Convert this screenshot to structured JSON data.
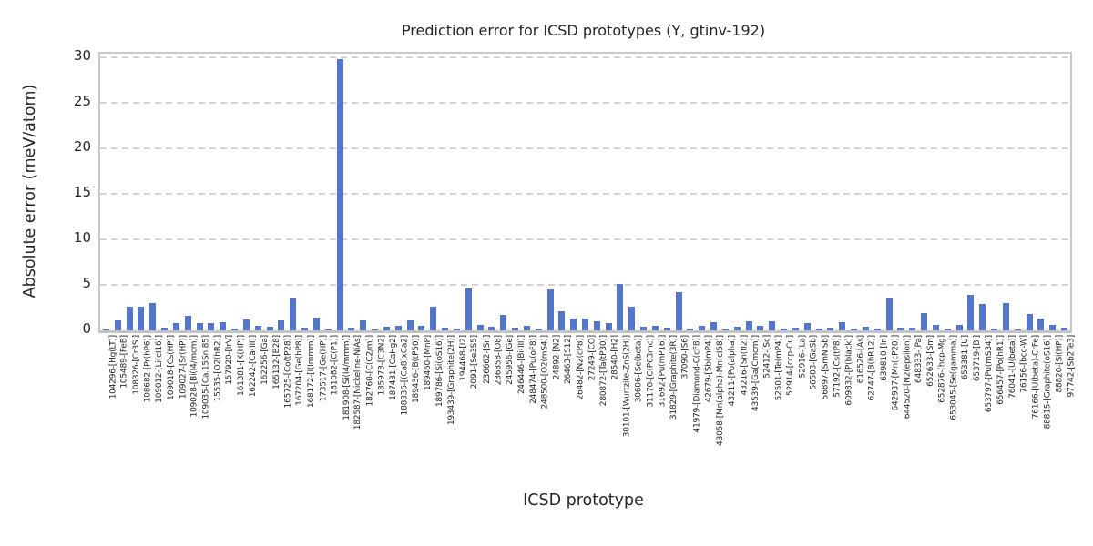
{
  "chart_data": {
    "type": "bar",
    "title": "Prediction error for ICSD prototypes (Y, gtinv-192)",
    "xlabel": "ICSD prototype",
    "ylabel": "Absolute error (meV/atom)",
    "ylim": [
      0,
      30.4
    ],
    "yticks": [
      0,
      5,
      10,
      15,
      20,
      25,
      30
    ],
    "grid": "horizontal dashed at yticks (except 0)",
    "legend": "none",
    "bar_color": "#5376cb",
    "categories": [
      "104296-[Hg(LT)]",
      "105489-[FeB]",
      "108326-[Cr3Si]",
      "108682-[Pr(hP6)]",
      "109012-[Li(cI16)]",
      "109018-[Cs(HP)]",
      "109027-[Sr(HP)]",
      "109028-[Bi(I4/mcm)]",
      "109035-[Ca.15Sn.85]",
      "15535-[O2(hR2)]",
      "157920-[IrV]",
      "161381-[K(HP)]",
      "162242-[Ca(III)]",
      "162256-[Ga]",
      "165132-[B28]",
      "165725-[Co(tP28)]",
      "167204-[Ge(hP8)]",
      "168172-[I(Immm)]",
      "173517-[Ge(HP)]",
      "181082-[C(P1)]",
      "181908-[Si(I4/mmm)]",
      "182587-[Nickeline-NiAs]",
      "182760-[C(C2/m)]",
      "185973-[C3N2]",
      "187431-[CaHg2]",
      "188336-[(Ca8)xCa2]",
      "189436-[B(tP50)]",
      "189460-[MnP]",
      "189786-[Si(oS16)]",
      "193439-[Graphite(2H)]",
      "194468-[I2]",
      "2091-[Se3S5]",
      "236662-[Sn]",
      "236858-[O8]",
      "245956-[Ge]",
      "246446-[Bi(III)]",
      "248474-[Pu(oF8)]",
      "248500-[O2(mS4)]",
      "24892-[N2]",
      "26463-[S12]",
      "26482-[N2(cP8)]",
      "27249-[CO]",
      "280872-[Ta(tP30)]",
      "28540-[H2]",
      "30101-[Wurtzite-ZnS(2H)]",
      "30606-[Se(beta)]",
      "31170-[C(P63mc)]",
      "31692-[Pu(mP16)]",
      "31829-[Graphite(3R)]",
      "37090-[S6]",
      "41979-[Diamond-C(cF8)]",
      "42679-[Sb(mP4)]",
      "43058-[Mn(alpha)-Mn(cI58)]",
      "43211-[Po(alpha)]",
      "43216-[Sn(tI2)]",
      "43539-[Ga(Cmcm)]",
      "52412-[Sc]",
      "52501-[Te(mP4)]",
      "52914-[ccp-Cu]",
      "52916-[La]",
      "56503-[GaSb]",
      "56897-[SmNiSb]",
      "57192-[Cs(tP8)]",
      "609832-[P(black)]",
      "616526-[As]",
      "62747-[B(hR12)]",
      "639810-[In]",
      "642937-[Mn(cP20)]",
      "644520-[N2(epsilon)]",
      "648333-[Pa]",
      "652633-[Sm]",
      "652876-[hcp-Mg]",
      "653045-[Se(gamma)]",
      "653381-[U]",
      "653719-[Bi]",
      "653797-[Pu(mS34)]",
      "656457-[Po(hR1)]",
      "76041-[U(beta)]",
      "76156-[bcc-W]",
      "76166-[U(beta)-CrFe]",
      "88815-[Graphite(oS16)]",
      "88820-[Si(HP)]",
      "97742-[Sb2Te3]"
    ],
    "values": [
      0.05,
      1.1,
      2.6,
      2.6,
      3.0,
      0.3,
      0.75,
      1.55,
      0.8,
      0.8,
      0.85,
      0.2,
      1.15,
      0.5,
      0.4,
      1.1,
      3.45,
      0.25,
      1.4,
      0.05,
      29.8,
      0.25,
      1.05,
      0.05,
      0.4,
      0.5,
      1.1,
      0.5,
      2.6,
      0.3,
      0.2,
      4.6,
      0.6,
      0.4,
      1.65,
      0.25,
      0.45,
      0.2,
      4.45,
      2.1,
      1.25,
      1.25,
      1.0,
      0.75,
      5.1,
      2.6,
      0.4,
      0.45,
      0.25,
      4.15,
      0.2,
      0.5,
      0.85,
      0.05,
      0.35,
      0.95,
      0.45,
      0.95,
      0.2,
      0.25,
      0.8,
      0.2,
      0.25,
      0.85,
      0.2,
      0.4,
      0.2,
      3.45,
      0.3,
      0.3,
      1.9,
      0.6,
      0.15,
      0.55,
      3.85,
      2.9,
      0.15,
      3.0,
      0.05,
      1.8,
      1.3,
      0.55,
      0.25
    ]
  }
}
